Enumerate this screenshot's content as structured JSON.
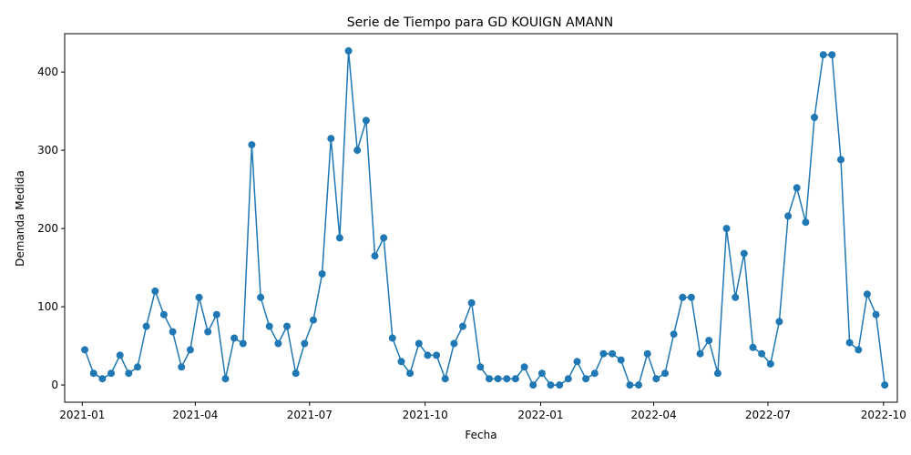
{
  "chart_data": {
    "type": "line",
    "title": "Serie de Tiempo para GD KOUIGN AMANN",
    "xlabel": "Fecha",
    "ylabel": "Demanda Medida",
    "ylim": [
      -22,
      449
    ],
    "xlim": [
      "2020-12-18",
      "2022-10-12"
    ],
    "x_ticks": [
      "2021-01-01",
      "2021-04-01",
      "2021-07-01",
      "2021-10-01",
      "2022-01-01",
      "2022-04-01",
      "2022-07-01",
      "2022-10-01"
    ],
    "x_tick_labels": [
      "2021-01",
      "2021-04",
      "2021-07",
      "2021-10",
      "2022-01",
      "2022-04",
      "2022-07",
      "2022-10"
    ],
    "y_ticks": [
      0,
      100,
      200,
      300,
      400
    ],
    "grid": false,
    "color": "#1f77b4",
    "series": [
      {
        "x": [
          "2021-01-03",
          "2021-01-10",
          "2021-01-17",
          "2021-01-24",
          "2021-01-31",
          "2021-02-07",
          "2021-02-14",
          "2021-02-21",
          "2021-02-28",
          "2021-03-07",
          "2021-03-14",
          "2021-03-21",
          "2021-03-28",
          "2021-04-04",
          "2021-04-11",
          "2021-04-18",
          "2021-04-25",
          "2021-05-02",
          "2021-05-09",
          "2021-05-16",
          "2021-05-23",
          "2021-05-30",
          "2021-06-06",
          "2021-06-13",
          "2021-06-20",
          "2021-06-27",
          "2021-07-04",
          "2021-07-11",
          "2021-07-18",
          "2021-07-25",
          "2021-08-01",
          "2021-08-08",
          "2021-08-15",
          "2021-08-22",
          "2021-08-29",
          "2021-09-05",
          "2021-09-12",
          "2021-09-19",
          "2021-09-26",
          "2021-10-03",
          "2021-10-10",
          "2021-10-17",
          "2021-10-24",
          "2021-10-31",
          "2021-11-07",
          "2021-11-14",
          "2021-11-21",
          "2021-11-28",
          "2021-12-05",
          "2021-12-12",
          "2021-12-19",
          "2021-12-26",
          "2022-01-02",
          "2022-01-09",
          "2022-01-16",
          "2022-01-23",
          "2022-01-30",
          "2022-02-06",
          "2022-02-13",
          "2022-02-20",
          "2022-02-27",
          "2022-03-06",
          "2022-03-13",
          "2022-03-20",
          "2022-03-27",
          "2022-04-03",
          "2022-04-10",
          "2022-04-17",
          "2022-04-24",
          "2022-05-01",
          "2022-05-08",
          "2022-05-15",
          "2022-05-22",
          "2022-05-29",
          "2022-06-05",
          "2022-06-12",
          "2022-06-19",
          "2022-06-26",
          "2022-07-03",
          "2022-07-10",
          "2022-07-17",
          "2022-07-24",
          "2022-07-31",
          "2022-08-07",
          "2022-08-14",
          "2022-08-21",
          "2022-08-28",
          "2022-09-04",
          "2022-09-11",
          "2022-09-18",
          "2022-09-25",
          "2022-10-02"
        ],
        "y": [
          45,
          15,
          8,
          15,
          38,
          15,
          23,
          75,
          120,
          90,
          68,
          23,
          45,
          112,
          68,
          90,
          8,
          60,
          53,
          307,
          112,
          75,
          53,
          75,
          15,
          53,
          83,
          142,
          315,
          188,
          427,
          300,
          338,
          165,
          188,
          60,
          30,
          15,
          53,
          38,
          38,
          8,
          53,
          75,
          105,
          23,
          8,
          8,
          8,
          8,
          23,
          0,
          15,
          0,
          0,
          8,
          30,
          8,
          15,
          40,
          40,
          32,
          0,
          0,
          40,
          8,
          15,
          65,
          112,
          112,
          40,
          57,
          15,
          200,
          112,
          168,
          48,
          40,
          27,
          81,
          216,
          252,
          208,
          342,
          422,
          422,
          288,
          54,
          45,
          116,
          90,
          0
        ]
      }
    ]
  }
}
